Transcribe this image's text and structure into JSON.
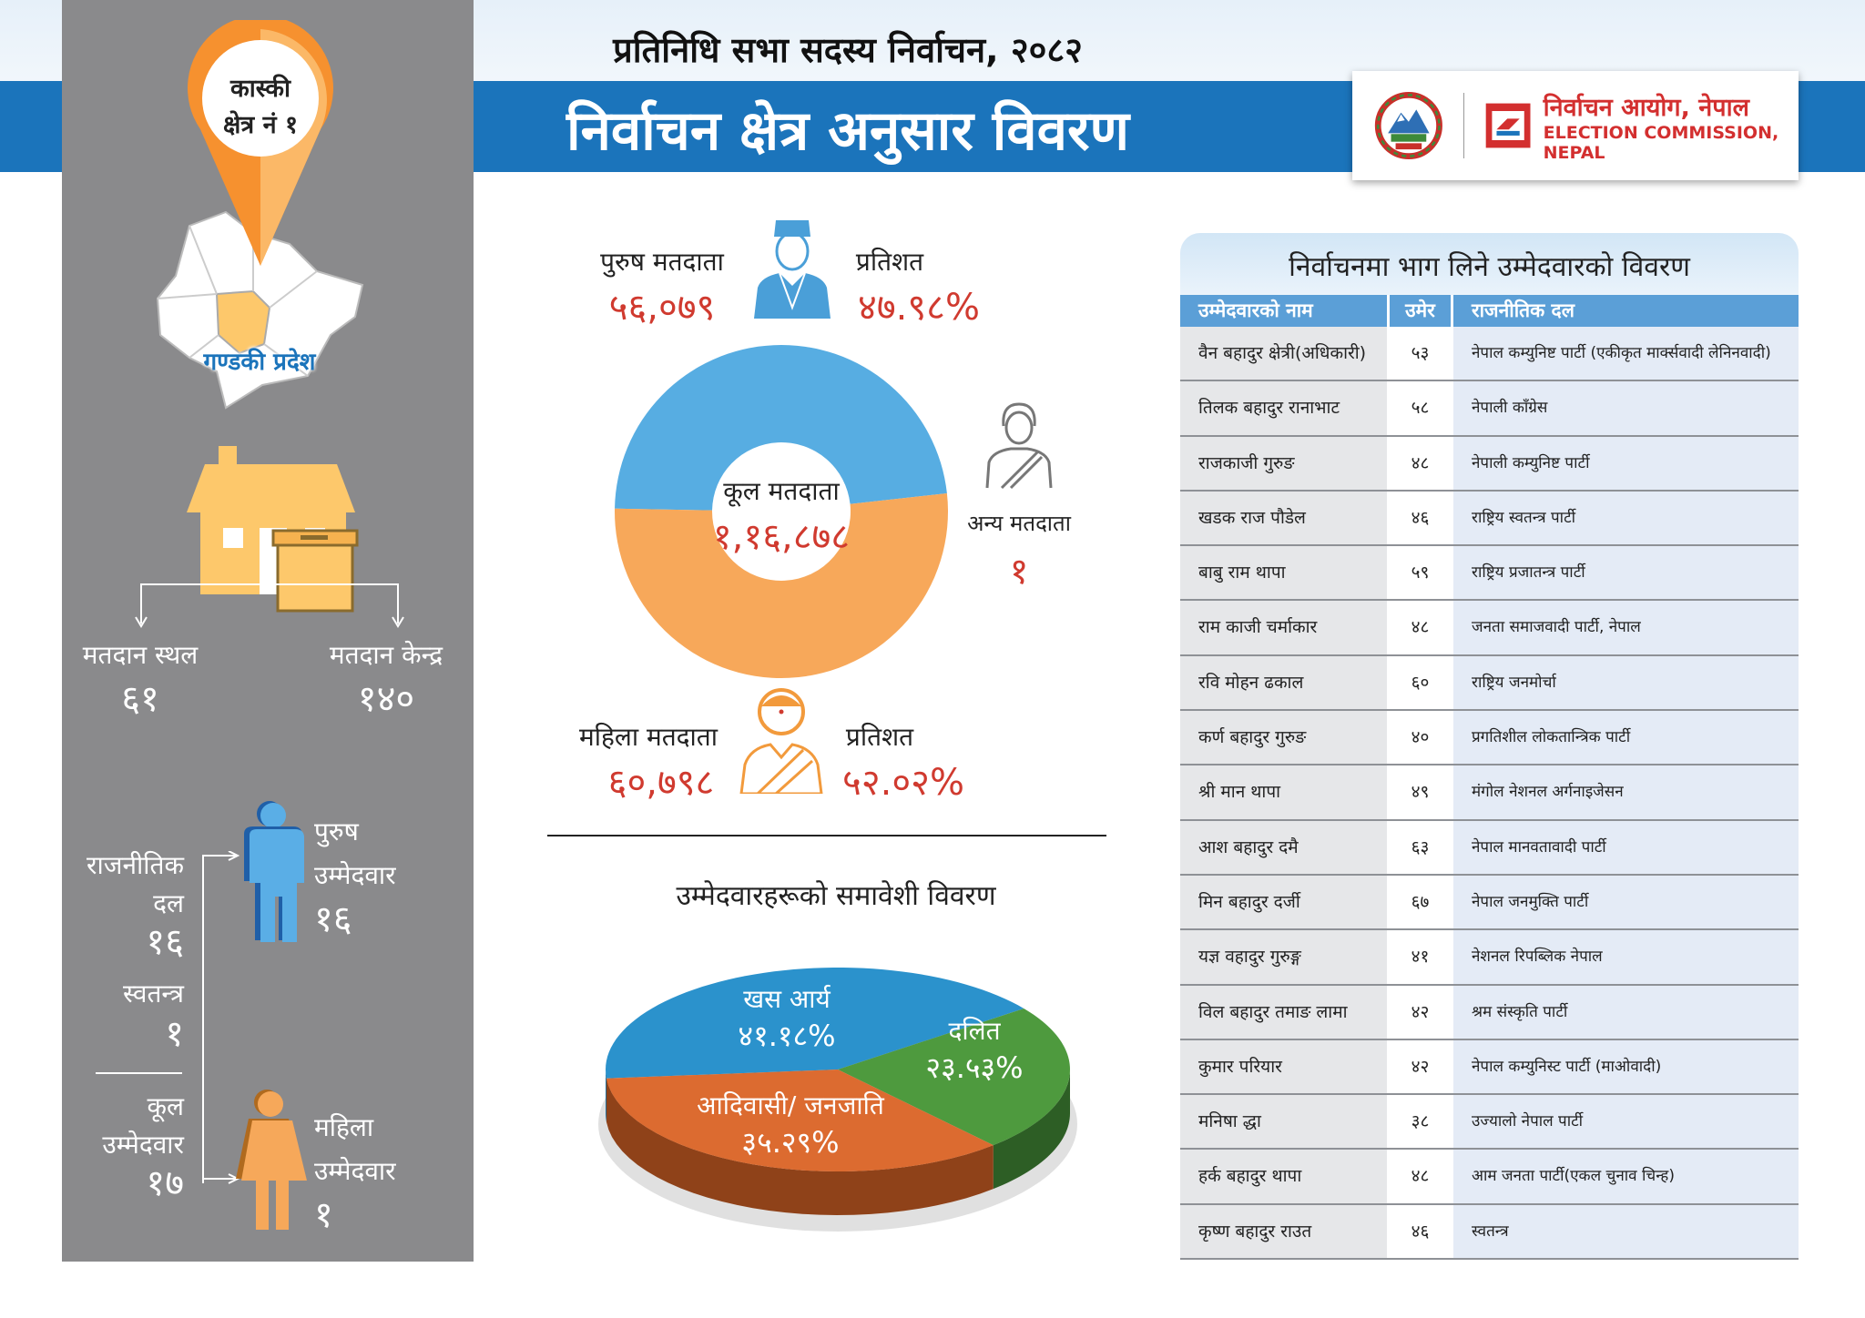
{
  "header": {
    "subtitle": "प्रतिनिधि सभा सदस्य निर्वाचन, २०८२",
    "title": "निर्वाचन क्षेत्र अनुसार विवरण",
    "logo_text_np": "निर्वाचन आयोग, नेपाल",
    "logo_text_en": "ELECTION COMMISSION, NEPAL"
  },
  "constituency": {
    "pin_line1": "कास्की",
    "pin_line2": "क्षेत्र नं १",
    "province": "गण्डकी प्रदेश"
  },
  "polling": {
    "stations_label": "मतदान स्थल",
    "stations_value": "६१",
    "centers_label": "मतदान केन्द्र",
    "centers_value": "१४०"
  },
  "candidates_summary": {
    "party_label_1": "राजनीतिक",
    "party_label_2": "दल",
    "party_value": "१६",
    "independent_label": "स्वतन्त्र",
    "independent_value": "१",
    "total_label_1": "कूल",
    "total_label_2": "उम्मेदवार",
    "total_value": "१७",
    "male_label_1": "पुरुष",
    "male_label_2": "उम्मेदवार",
    "male_value": "१६",
    "female_label_1": "महिला",
    "female_label_2": "उम्मेदवार",
    "female_value": "१"
  },
  "voters": {
    "male_label": "पुरुष मतदाता",
    "male_value": "५६,०७९",
    "male_pct_label": "प्रतिशत",
    "male_pct": "४७.९८%",
    "female_label": "महिला मतदाता",
    "female_value": "६०,७९८",
    "female_pct_label": "प्रतिशत",
    "female_pct": "५२.०२%",
    "total_label": "कूल मतदाता",
    "total_value": "१,१६,८७८",
    "other_label": "अन्य मतदाता",
    "other_value": "१"
  },
  "inclusion_title": "उम्मेदवारहरूको समावेशी विवरण",
  "chart_data": [
    {
      "type": "pie",
      "variant": "donut",
      "categories": [
        "पुरुष मतदाता",
        "महिला मतदाता"
      ],
      "values": [
        47.98,
        52.02
      ],
      "colors": [
        "#57ade2",
        "#f7a85a"
      ]
    },
    {
      "type": "pie",
      "variant": "3d",
      "title": "उम्मेदवारहरूको समावेशी विवरण",
      "categories": [
        "खस आर्य",
        "दलित",
        "आदिवासी/ जनजाति"
      ],
      "values": [
        41.18,
        23.53,
        35.29
      ],
      "labels": [
        "४१.१८%",
        "२३.५३%",
        "३५.२९%"
      ],
      "colors": [
        "#2b92cc",
        "#4e9a3e",
        "#dc6b30"
      ]
    }
  ],
  "table": {
    "title": "निर्वाचनमा भाग लिने उम्मेदवारको विवरण",
    "headers": [
      "उम्मेदवारको नाम",
      "उमेर",
      "राजनीतिक दल"
    ],
    "rows": [
      [
        "वैन बहादुर क्षेत्री(अधिकारी)",
        "५३",
        "नेपाल कम्युनिष्ट पार्टी (एकीकृत मार्क्सवादी लेनिनवादी)"
      ],
      [
        "तिलक बहादुर रानाभाट",
        "५८",
        "नेपाली काँग्रेस"
      ],
      [
        "राजकाजी गुरुङ",
        "४८",
        "नेपाली कम्युनिष्ट पार्टी"
      ],
      [
        "खडक राज पौडेल",
        "४६",
        "राष्ट्रिय स्वतन्त्र पार्टी"
      ],
      [
        "बाबु राम थापा",
        "५९",
        "राष्ट्रिय प्रजातन्त्र पार्टी"
      ],
      [
        "राम काजी चर्माकार",
        "४८",
        "जनता समाजवादी पार्टी, नेपाल"
      ],
      [
        "रवि मोहन ढकाल",
        "६०",
        "राष्ट्रिय जनमोर्चा"
      ],
      [
        "कर्ण बहादुर गुरुङ",
        "४०",
        "प्रगतिशील लोकतान्त्रिक पार्टी"
      ],
      [
        "श्री मान थापा",
        "४९",
        "मंगोल नेशनल अर्गनाइजेसन"
      ],
      [
        "आश बहादुर दमै",
        "६३",
        "नेपाल मानवतावादी पार्टी"
      ],
      [
        "मिन बहादुर दर्जी",
        "६७",
        "नेपाल जनमुक्ति पार्टी"
      ],
      [
        "यज्ञ वहादुर गुरुङ्ग",
        "४१",
        "नेशनल रिपब्लिक नेपाल"
      ],
      [
        "विल बहादुर तमाङ लामा",
        "४२",
        "श्रम संस्कृति पार्टी"
      ],
      [
        "कुमार परियार",
        "४२",
        "नेपाल कम्युनिस्ट पार्टी (माओवादी)"
      ],
      [
        "मनिषा द्धा",
        "३८",
        "उज्यालो नेपाल पार्टी"
      ],
      [
        "हर्क बहादुर थापा",
        "४८",
        "आम जनता पार्टी(एकल चुनाव चिन्ह)"
      ],
      [
        "कृष्ण बहादुर राउत",
        "४६",
        "स्वतन्त्र"
      ]
    ]
  }
}
